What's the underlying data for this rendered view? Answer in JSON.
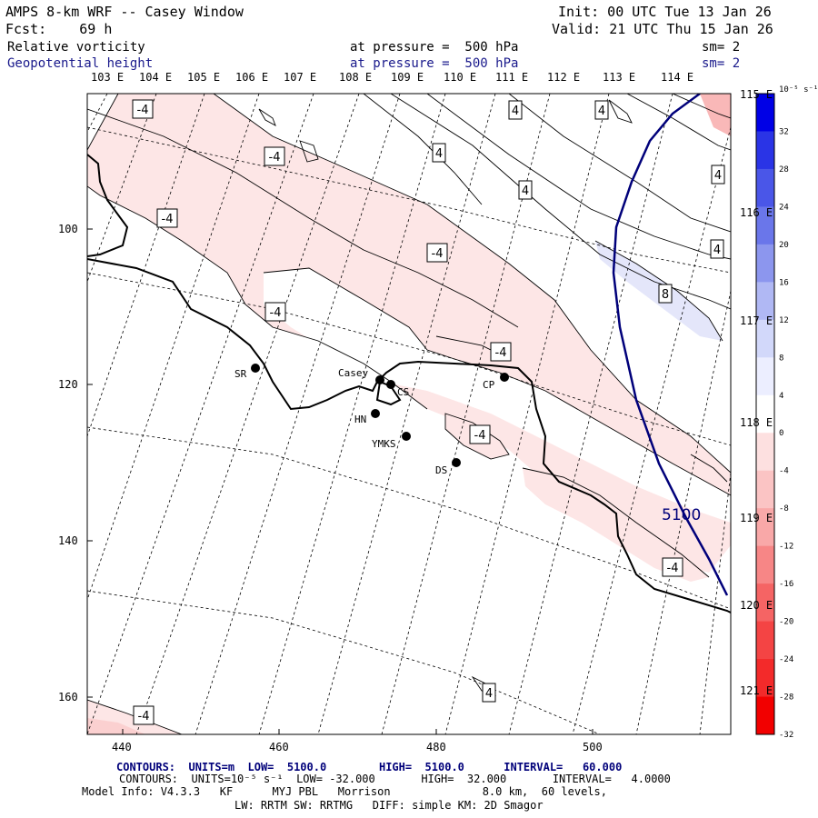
{
  "header": {
    "title": "AMPS 8-km WRF -- Casey Window",
    "forecast": "Fcst:    69 h",
    "init": "Init: 00 UTC Tue 13 Jan 26",
    "valid": "Valid: 21 UTC Thu 15 Jan 26",
    "field1": {
      "name": "Relative vorticity",
      "level": "at pressure =  500 hPa",
      "sm": "sm= 2"
    },
    "field2": {
      "name": "Geopotential height",
      "level": "at pressure =  500 hPa",
      "sm": "sm= 2"
    }
  },
  "map": {
    "lon_labels_top": [
      "103 E",
      "104 E",
      "105 E",
      "106 E",
      "107 E",
      "108 E",
      "109 E",
      "110 E",
      "111 E",
      "112 E",
      "113 E",
      "114 E"
    ],
    "lat_labels_right": [
      "115 E",
      "116 E",
      "117 E",
      "118 E",
      "119 E",
      "120 E",
      "121 E"
    ],
    "grid_x_ticks": [
      "440",
      "460",
      "480",
      "500"
    ],
    "grid_y_ticks": [
      "100",
      "120",
      "140",
      "160"
    ],
    "stations": [
      {
        "code": "SR"
      },
      {
        "code": "Casey"
      },
      {
        "code": "CS"
      },
      {
        "code": "HN"
      },
      {
        "code": "YMKS"
      },
      {
        "code": "DS"
      },
      {
        "code": "CP"
      }
    ],
    "contour_labels": [
      "-4",
      "-4",
      "-4",
      "-4",
      "-4",
      "-4",
      "-4",
      "-4",
      "4",
      "4",
      "4",
      "4",
      "4",
      "4",
      "8",
      "4",
      "-4",
      "-4"
    ],
    "height_contour_label": "5100"
  },
  "colorbar": {
    "units": "10⁻⁵ s⁻¹",
    "labels": [
      "32",
      "28",
      "24",
      "20",
      "16",
      "12",
      "8",
      "4",
      "0",
      "-4",
      "-8",
      "-12",
      "-16",
      "-20",
      "-24",
      "-28",
      "-32"
    ],
    "colors": [
      "#0000e6",
      "#2a34e6",
      "#4a56e8",
      "#6a76ea",
      "#8c96ee",
      "#b0b8f4",
      "#d2d8fa",
      "#eceeff",
      "#ffffff",
      "#fde0e0",
      "#fbc4c4",
      "#f9a8a8",
      "#f78686",
      "#f56464",
      "#f44444",
      "#f32a2a",
      "#f20000"
    ]
  },
  "footer": {
    "line1": "CONTOURS:  UNITS=m  LOW=  5100.0        HIGH=  5100.0      INTERVAL=   60.000",
    "line2": "CONTOURS:  UNITS=10⁻⁵ s⁻¹  LOW= -32.000       HIGH=  32.000       INTERVAL=   4.0000",
    "line3": "Model Info: V4.3.3   KF      MYJ PBL   Morrison              8.0 km,  60 levels,",
    "line4": "LW: RRTM SW: RRTMG   DIFF: simple KM: 2D Smagor"
  }
}
